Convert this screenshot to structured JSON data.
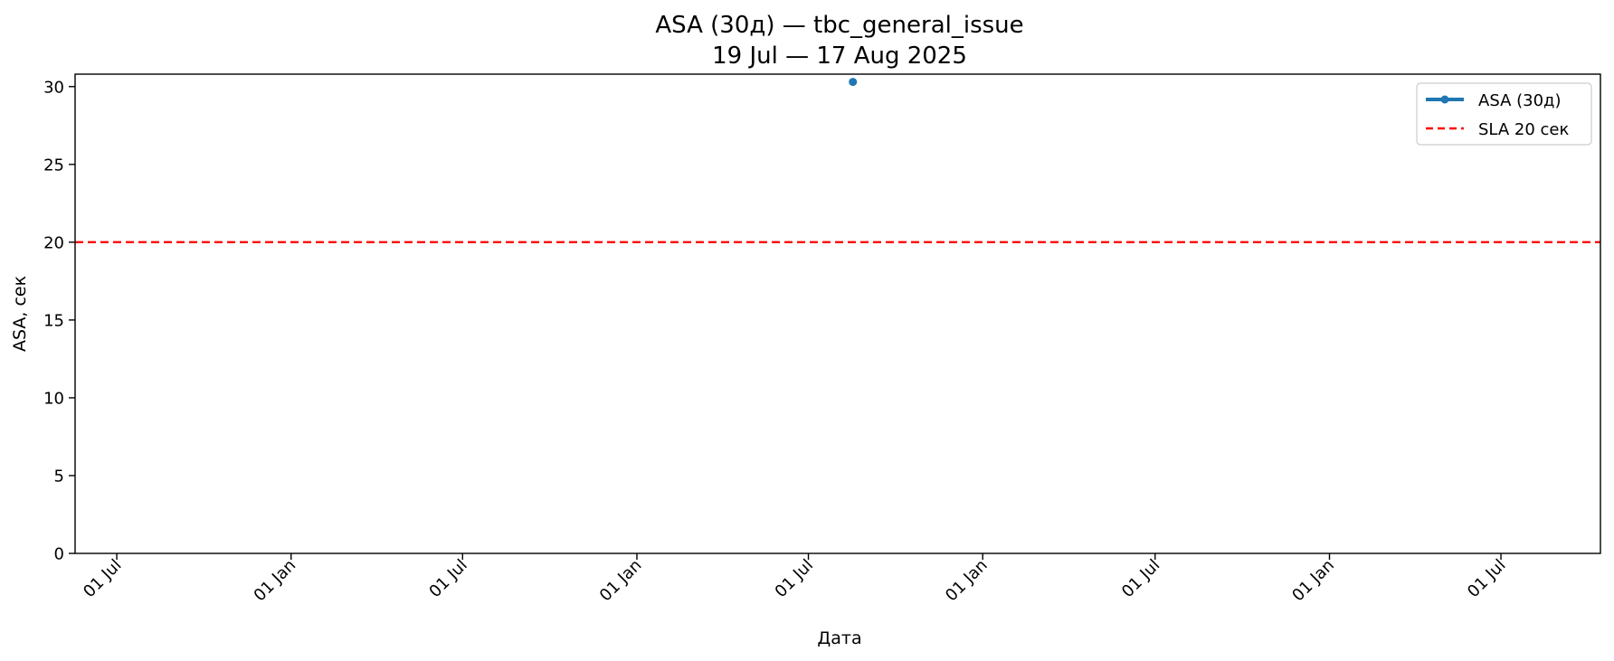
{
  "chart_data": {
    "type": "line",
    "title": "ASA (30д) — tbc_general_issue",
    "subtitle": "19 Jul — 17 Aug 2025",
    "xlabel": "Дата",
    "ylabel": "ASA, сек",
    "ylim": [
      0,
      30.8
    ],
    "xlim": [
      "2021-05-18",
      "2025-10-14"
    ],
    "yticks": [
      0,
      5,
      10,
      15,
      20,
      25,
      30
    ],
    "xticks": [
      {
        "date": "2021-07-01",
        "label": "01 Jul"
      },
      {
        "date": "2022-01-01",
        "label": "01 Jan"
      },
      {
        "date": "2022-07-01",
        "label": "01 Jul"
      },
      {
        "date": "2023-01-01",
        "label": "01 Jan"
      },
      {
        "date": "2023-07-01",
        "label": "01 Jul"
      },
      {
        "date": "2024-01-01",
        "label": "01 Jan"
      },
      {
        "date": "2024-07-01",
        "label": "01 Jul"
      },
      {
        "date": "2025-01-01",
        "label": "01 Jan"
      },
      {
        "date": "2025-07-01",
        "label": "01 Jul"
      }
    ],
    "grid": false,
    "legend_position": "top-right",
    "series": [
      {
        "name": "ASA (30д)",
        "color": "#1f77b4",
        "style": "line-with-markers",
        "points": [
          {
            "x": "2023-08-17",
            "y": 30.3
          }
        ]
      }
    ],
    "reference_lines": [
      {
        "name": "SLA 20 сек",
        "y": 20,
        "color": "#ff0000",
        "style": "dashed"
      }
    ]
  }
}
